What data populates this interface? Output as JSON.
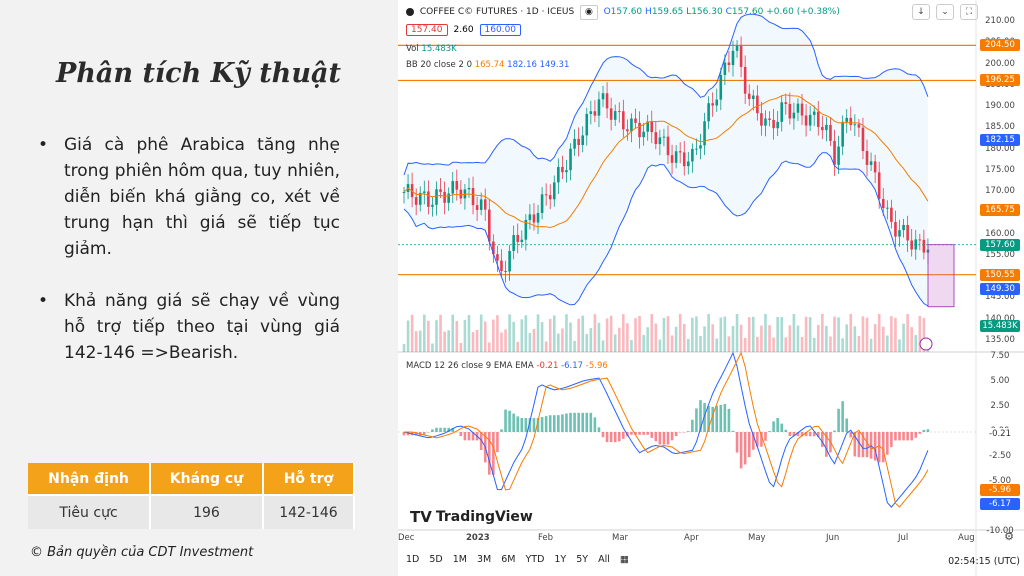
{
  "slide": {
    "title": "Phân tích Kỹ thuật",
    "bullets": [
      "Giá cà phê Arabica tăng nhẹ trong phiên hôm qua, tuy nhiên, diễn biến khá giằng co, xét về trung hạn thì giá sẽ tiếp tục giảm.",
      "Khả năng giá sẽ chạy về vùng hỗ trợ tiếp theo tại vùng giá 142-146 =>Bearish."
    ],
    "bullet_glyph": "•",
    "table": {
      "headers": [
        "Nhận định",
        "Kháng cự",
        "Hỗ trợ"
      ],
      "row": [
        "Tiêu cực",
        "196",
        "142-146"
      ]
    },
    "copyright": "© Bản quyền của CDT Investment"
  },
  "tv": {
    "symbol": "COFFEE C© FUTURES · 1D · ICEUS",
    "ohlc": {
      "o": "157.60",
      "h": "159.65",
      "l": "156.30",
      "c": "157.60",
      "chg": "+0.60 (+0.38%)"
    },
    "labels": {
      "o": "O",
      "h": "H",
      "l": "L",
      "c": "C"
    },
    "sell": "157.40",
    "spread": "2.60",
    "buy": "160.00",
    "vol_label": "Vol",
    "vol_value": "15.483K",
    "bb_label": "BB 20 close 2 0",
    "bb_values": [
      "165.74",
      "182.16",
      "149.31"
    ],
    "macd_label": "MACD 12 26 close 9 EMA EMA",
    "macd_values": [
      "-0.21",
      "-6.17",
      "-5.96"
    ],
    "price_axis": [
      "210.00",
      "205.00",
      "200.00",
      "195.00",
      "190.00",
      "185.00",
      "180.00",
      "175.00",
      "170.00",
      "165.00",
      "160.00",
      "155.00",
      "150.00",
      "145.00",
      "140.00",
      "135.00"
    ],
    "macd_axis": [
      "7.50",
      "5.00",
      "2.50",
      "0.00",
      "-2.50",
      "-5.00",
      "-7.50",
      "-10.00"
    ],
    "price_tags": [
      {
        "value": "204.50",
        "color": "#f57c00"
      },
      {
        "value": "196.25",
        "color": "#f57c00"
      },
      {
        "value": "182.15",
        "color": "#2962ff"
      },
      {
        "value": "165.75",
        "color": "#f57c00"
      },
      {
        "value": "157.60",
        "color": "#089981"
      },
      {
        "value": "150.55",
        "color": "#f57c00"
      },
      {
        "value": "149.30",
        "color": "#2962ff"
      },
      {
        "value": "15.483K",
        "color": "#089981"
      }
    ],
    "macd_tags": [
      {
        "value": "-0.21",
        "color": "#ffffff"
      },
      {
        "value": "-5.96",
        "color": "#f57c00"
      },
      {
        "value": "-6.17",
        "color": "#2962ff"
      }
    ],
    "x_axis": [
      "Dec",
      "2023",
      "Feb",
      "Mar",
      "Apr",
      "May",
      "Jun",
      "Jul",
      "Aug"
    ],
    "logo": "TradingView",
    "timeframes": [
      "1D",
      "5D",
      "1M",
      "3M",
      "6M",
      "YTD",
      "1Y",
      "5Y",
      "All"
    ],
    "clock": "02:54:15 (UTC)",
    "icons": [
      "eye-icon",
      "arrow-down-icon",
      "fullscreen-icon",
      "calendar-range-icon",
      "settings-icon"
    ]
  }
}
